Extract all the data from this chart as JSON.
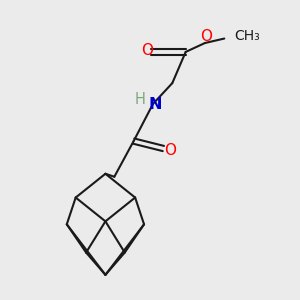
{
  "bg_color": "#ebebeb",
  "bond_color": "#1a1a1a",
  "O_color": "#ff0000",
  "N_color": "#0000cc",
  "H_color": "#7aaa7a",
  "line_width": 1.5,
  "font_size": 10.5,
  "figsize": [
    3.0,
    3.0
  ],
  "dpi": 100,
  "xlim": [
    0,
    10
  ],
  "ylim": [
    0,
    10
  ]
}
